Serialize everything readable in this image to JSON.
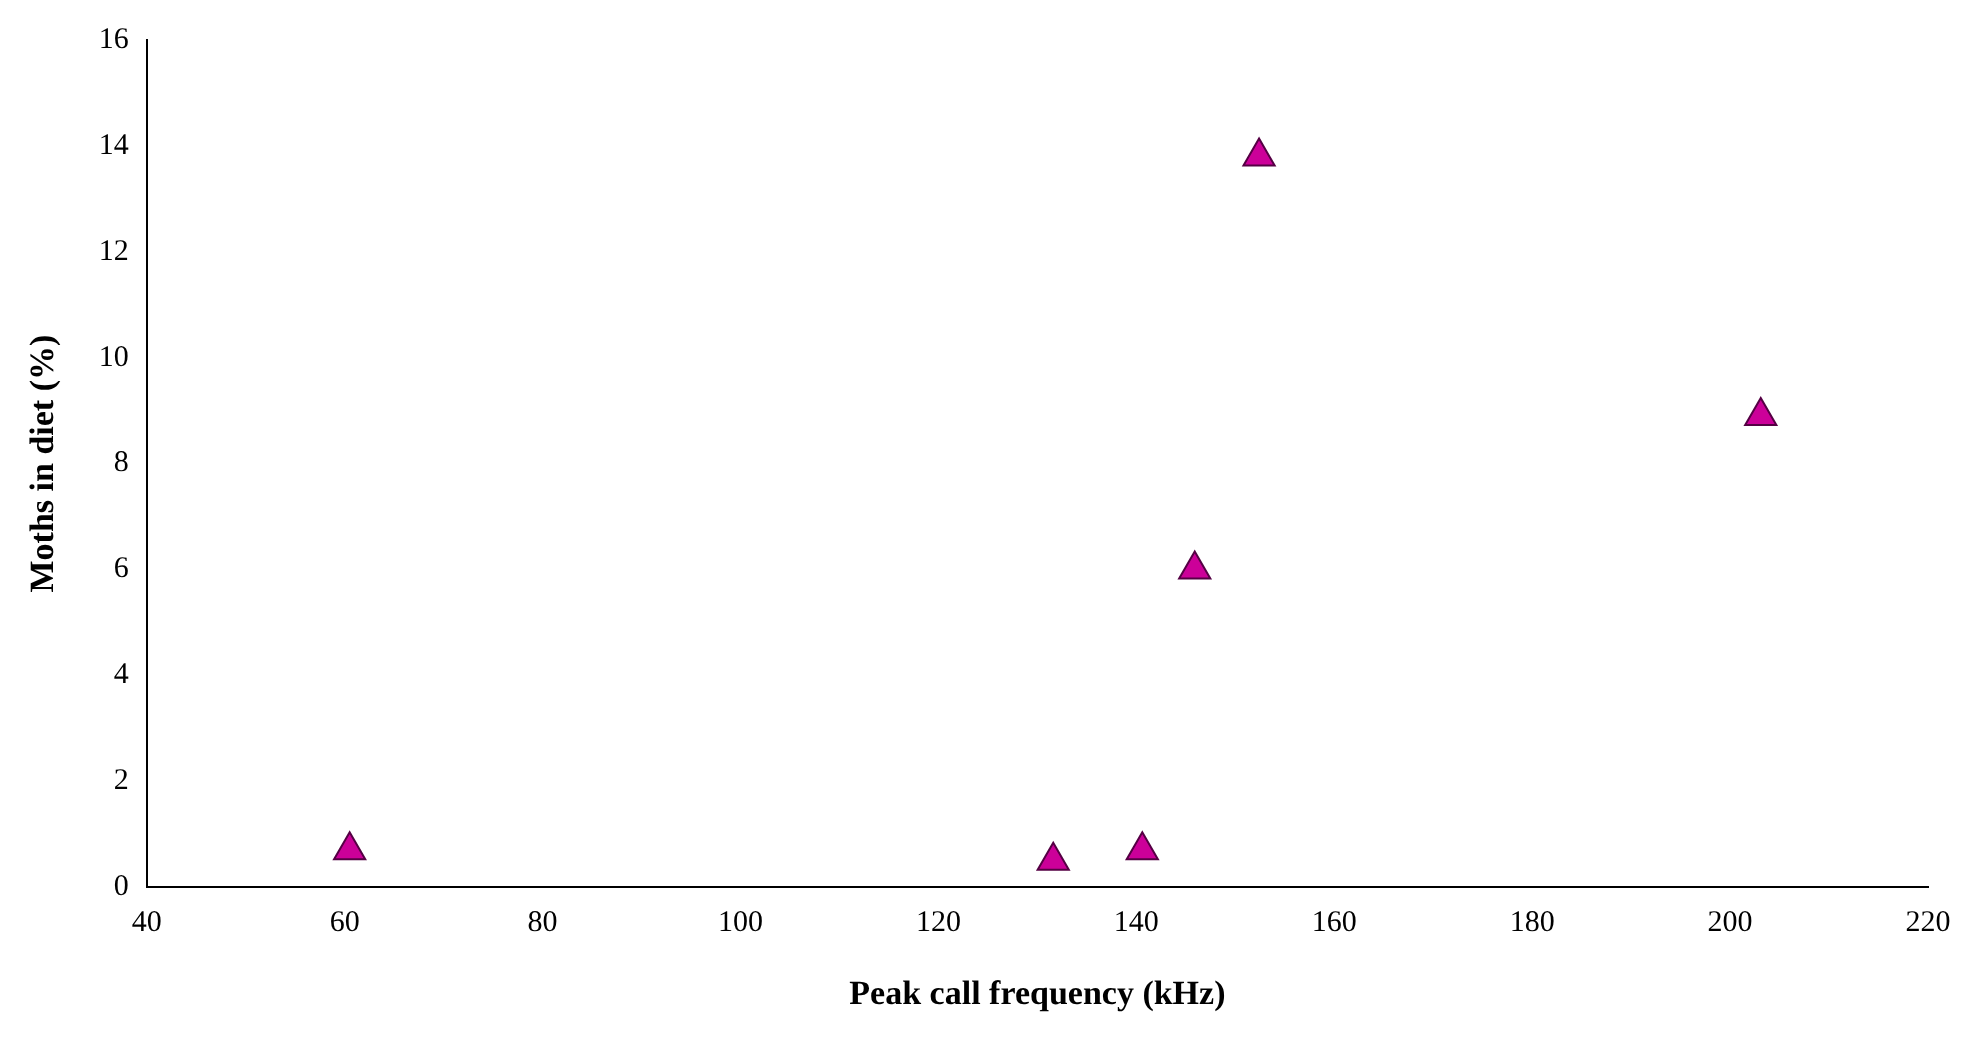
{
  "chart_data": {
    "type": "scatter",
    "xlabel": "Peak call frequency (kHz)",
    "ylabel": "Moths in diet (%)",
    "x": [
      60.5,
      131.6,
      140.6,
      145.9,
      152.4,
      203.1
    ],
    "series": [
      {
        "color": "#cc0099",
        "values": [
          0.7,
          0.5,
          0.7,
          6.0,
          13.8,
          8.9
        ]
      }
    ],
    "xlim": [
      40,
      220
    ],
    "xticks": [
      40,
      60,
      80,
      100,
      120,
      140,
      160,
      180,
      200,
      220
    ],
    "ylim": [
      0,
      16
    ],
    "yticks": [
      0,
      2,
      4,
      6,
      8,
      10,
      12,
      14,
      16
    ],
    "grid": false,
    "legend": false,
    "marker": "triangle"
  }
}
